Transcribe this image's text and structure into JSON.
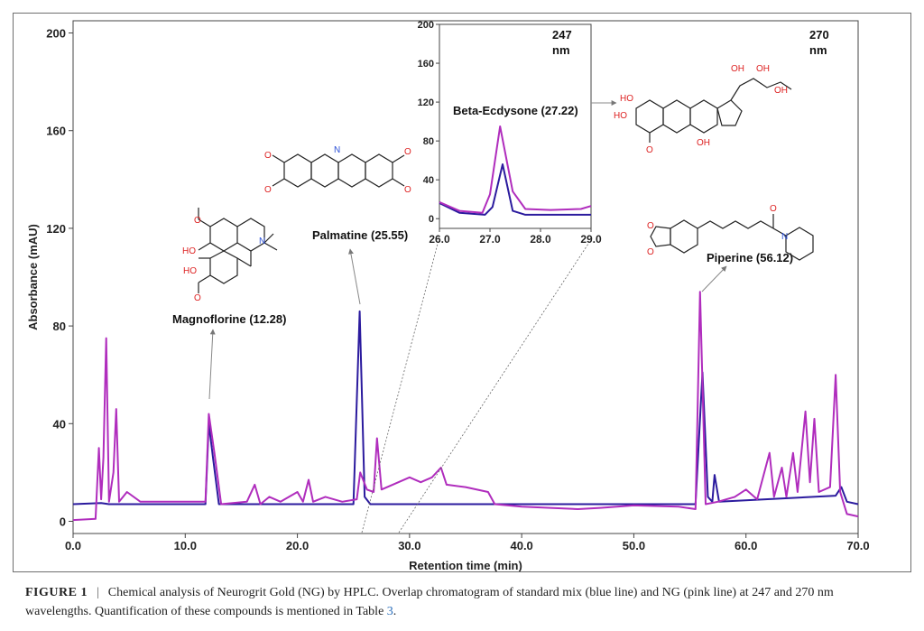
{
  "chart_data": {
    "type": "line",
    "xlabel": "Retention time (min)",
    "ylabel": "Absorbance (mAU)",
    "xlim": [
      0,
      70
    ],
    "ylim": [
      -5,
      205
    ],
    "x_ticks": [
      "0.0",
      "10.0",
      "20.0",
      "30.0",
      "40.0",
      "50.0",
      "60.0",
      "70.0"
    ],
    "y_ticks": [
      "0",
      "40",
      "80",
      "120",
      "160",
      "200"
    ],
    "wavelength_labels": [
      [
        "247",
        "nm"
      ],
      [
        "270",
        "nm"
      ]
    ],
    "series": [
      {
        "color": "#2b1b9e",
        "points": [
          [
            0,
            7
          ],
          [
            2.5,
            7.5
          ],
          [
            3.2,
            7
          ],
          [
            11.8,
            7
          ],
          [
            12.1,
            40
          ],
          [
            12.5,
            25
          ],
          [
            13.0,
            7
          ],
          [
            25.0,
            7
          ],
          [
            25.55,
            86
          ],
          [
            26.0,
            10
          ],
          [
            26.5,
            7
          ],
          [
            55.5,
            7
          ],
          [
            56.12,
            61
          ],
          [
            56.6,
            10
          ],
          [
            57.0,
            8
          ],
          [
            57.2,
            19
          ],
          [
            57.6,
            8
          ],
          [
            68,
            10.5
          ],
          [
            68.5,
            14
          ],
          [
            69.0,
            8
          ],
          [
            70,
            7
          ]
        ]
      },
      {
        "color": "#b02dbd",
        "points": [
          [
            0,
            0.5
          ],
          [
            2.0,
            1
          ],
          [
            2.3,
            30
          ],
          [
            2.5,
            9
          ],
          [
            2.7,
            26
          ],
          [
            2.95,
            75
          ],
          [
            3.2,
            8
          ],
          [
            3.6,
            20
          ],
          [
            3.85,
            46
          ],
          [
            4.1,
            8
          ],
          [
            4.8,
            12
          ],
          [
            6,
            8
          ],
          [
            9,
            8
          ],
          [
            11.8,
            8
          ],
          [
            12.1,
            44
          ],
          [
            12.6,
            28
          ],
          [
            13.2,
            7
          ],
          [
            15.5,
            8
          ],
          [
            16.2,
            15
          ],
          [
            16.7,
            7
          ],
          [
            17.5,
            10
          ],
          [
            18.5,
            8
          ],
          [
            20.0,
            12
          ],
          [
            20.5,
            8
          ],
          [
            21.0,
            17
          ],
          [
            21.4,
            8
          ],
          [
            22.5,
            10
          ],
          [
            24,
            8
          ],
          [
            25.3,
            9
          ],
          [
            25.6,
            20
          ],
          [
            26.2,
            13
          ],
          [
            26.8,
            12
          ],
          [
            27.1,
            34
          ],
          [
            27.5,
            13
          ],
          [
            28.5,
            15
          ],
          [
            30,
            18
          ],
          [
            31,
            16
          ],
          [
            32,
            18
          ],
          [
            32.8,
            22
          ],
          [
            33.3,
            15
          ],
          [
            35,
            14
          ],
          [
            37,
            12
          ],
          [
            37.6,
            7
          ],
          [
            40,
            6
          ],
          [
            45,
            5
          ],
          [
            47,
            5.5
          ],
          [
            50,
            6.5
          ],
          [
            54,
            6
          ],
          [
            55.5,
            5
          ],
          [
            55.9,
            94
          ],
          [
            56.4,
            7
          ],
          [
            57.5,
            8
          ],
          [
            59,
            10
          ],
          [
            60,
            13
          ],
          [
            61,
            9
          ],
          [
            62.1,
            28
          ],
          [
            62.5,
            10
          ],
          [
            63.2,
            22
          ],
          [
            63.6,
            10
          ],
          [
            64.2,
            28
          ],
          [
            64.6,
            12
          ],
          [
            65.3,
            45
          ],
          [
            65.7,
            16
          ],
          [
            66.1,
            42
          ],
          [
            66.5,
            12
          ],
          [
            67.5,
            14
          ],
          [
            68.0,
            60
          ],
          [
            68.4,
            12
          ],
          [
            69.0,
            3
          ],
          [
            70,
            2
          ]
        ]
      }
    ],
    "peak_labels": [
      "Magnoflorine (12.28)",
      "Palmatine (25.55)",
      "Piperine (56.12)"
    ],
    "inset": {
      "xlim": [
        26.0,
        29.0
      ],
      "ylim": [
        -10,
        200
      ],
      "x_ticks": [
        "26.0",
        "27.0",
        "28.0",
        "29.0"
      ],
      "y_ticks": [
        "0",
        "40",
        "80",
        "120",
        "160",
        "200"
      ],
      "peak_label": "Beta-Ecdysone (27.22)",
      "series": [
        {
          "color": "#2b1b9e",
          "points": [
            [
              26.0,
              16
            ],
            [
              26.4,
              6
            ],
            [
              26.9,
              4
            ],
            [
              27.05,
              12
            ],
            [
              27.25,
              56
            ],
            [
              27.45,
              8
            ],
            [
              27.7,
              4
            ],
            [
              29.0,
              4
            ]
          ]
        },
        {
          "color": "#b02dbd",
          "points": [
            [
              26.0,
              17
            ],
            [
              26.4,
              8
            ],
            [
              26.85,
              6
            ],
            [
              27.0,
              25
            ],
            [
              27.2,
              95
            ],
            [
              27.45,
              28
            ],
            [
              27.7,
              10
            ],
            [
              28.2,
              9
            ],
            [
              28.8,
              10
            ],
            [
              29.0,
              13
            ]
          ]
        }
      ]
    },
    "structure_atom_labels": {
      "magnoflorine": [
        "O",
        "HO",
        "HO",
        "O",
        "N"
      ],
      "palmatine": [
        "O",
        "O",
        "N",
        "O",
        "O"
      ],
      "ecdysone": [
        "HO",
        "HO",
        "O",
        "OH",
        "OH",
        "OH",
        "OH"
      ],
      "piperine": [
        "O",
        "O",
        "O",
        "N"
      ]
    }
  },
  "caption": {
    "label": "FIGURE 1",
    "separator": "|",
    "text": "Chemical analysis of Neurogrit Gold (NG) by HPLC. Overlap chromatogram of standard mix (blue line) and NG (pink line) at 247 and 270 nm wavelengths. Quantification of these compounds is mentioned in Table",
    "ref": "3",
    "end": "."
  }
}
